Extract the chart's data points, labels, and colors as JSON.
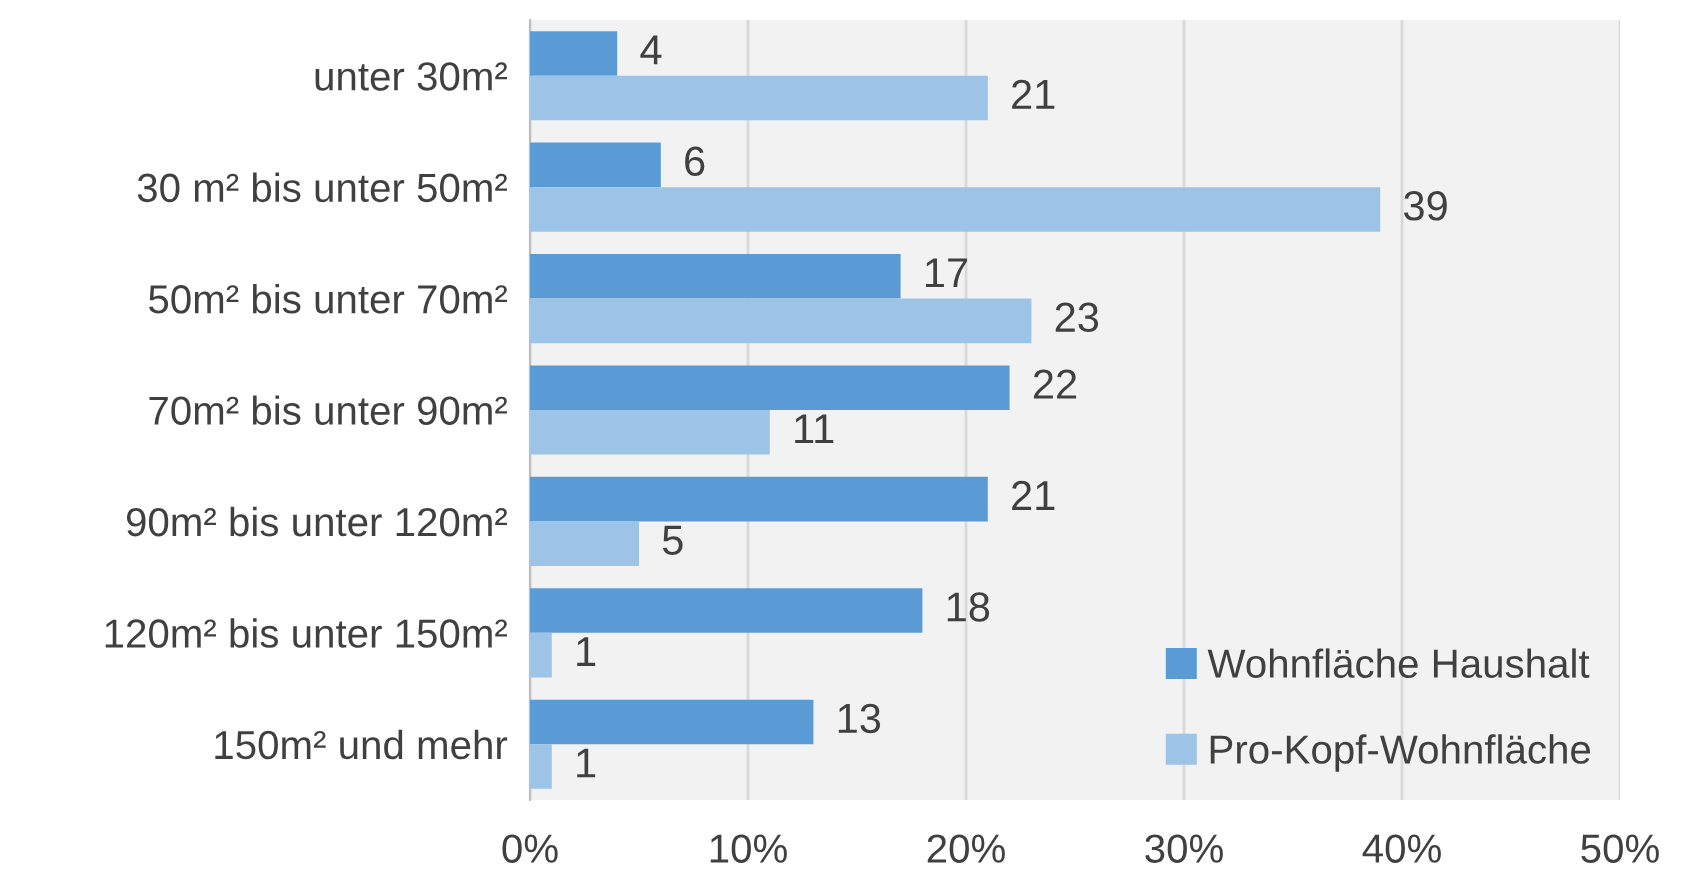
{
  "chart_data": {
    "type": "bar",
    "orientation": "horizontal",
    "categories": [
      "unter 30m²",
      "30 m² bis unter 50m²",
      "50m² bis unter 70m²",
      "70m² bis unter 90m²",
      "90m² bis unter 120m²",
      "120m² bis unter 150m²",
      "150m² und mehr"
    ],
    "series": [
      {
        "name": "Wohnfläche Haushalt",
        "color": "#5b9bd5",
        "values": [
          4,
          6,
          17,
          22,
          21,
          18,
          13
        ]
      },
      {
        "name": "Pro-Kopf-Wohnfläche",
        "color": "#9dc3e6",
        "values": [
          21,
          39,
          23,
          11,
          5,
          1,
          1
        ]
      }
    ],
    "xlim": [
      0,
      50
    ],
    "xticks": [
      {
        "value": 0,
        "label": "0%"
      },
      {
        "value": 10,
        "label": "10%"
      },
      {
        "value": 20,
        "label": "20%"
      },
      {
        "value": 30,
        "label": "30%"
      },
      {
        "value": 40,
        "label": "40%"
      },
      {
        "value": 50,
        "label": "50%"
      }
    ],
    "grid": "x",
    "legend": "bottom right",
    "data_labels": true
  }
}
